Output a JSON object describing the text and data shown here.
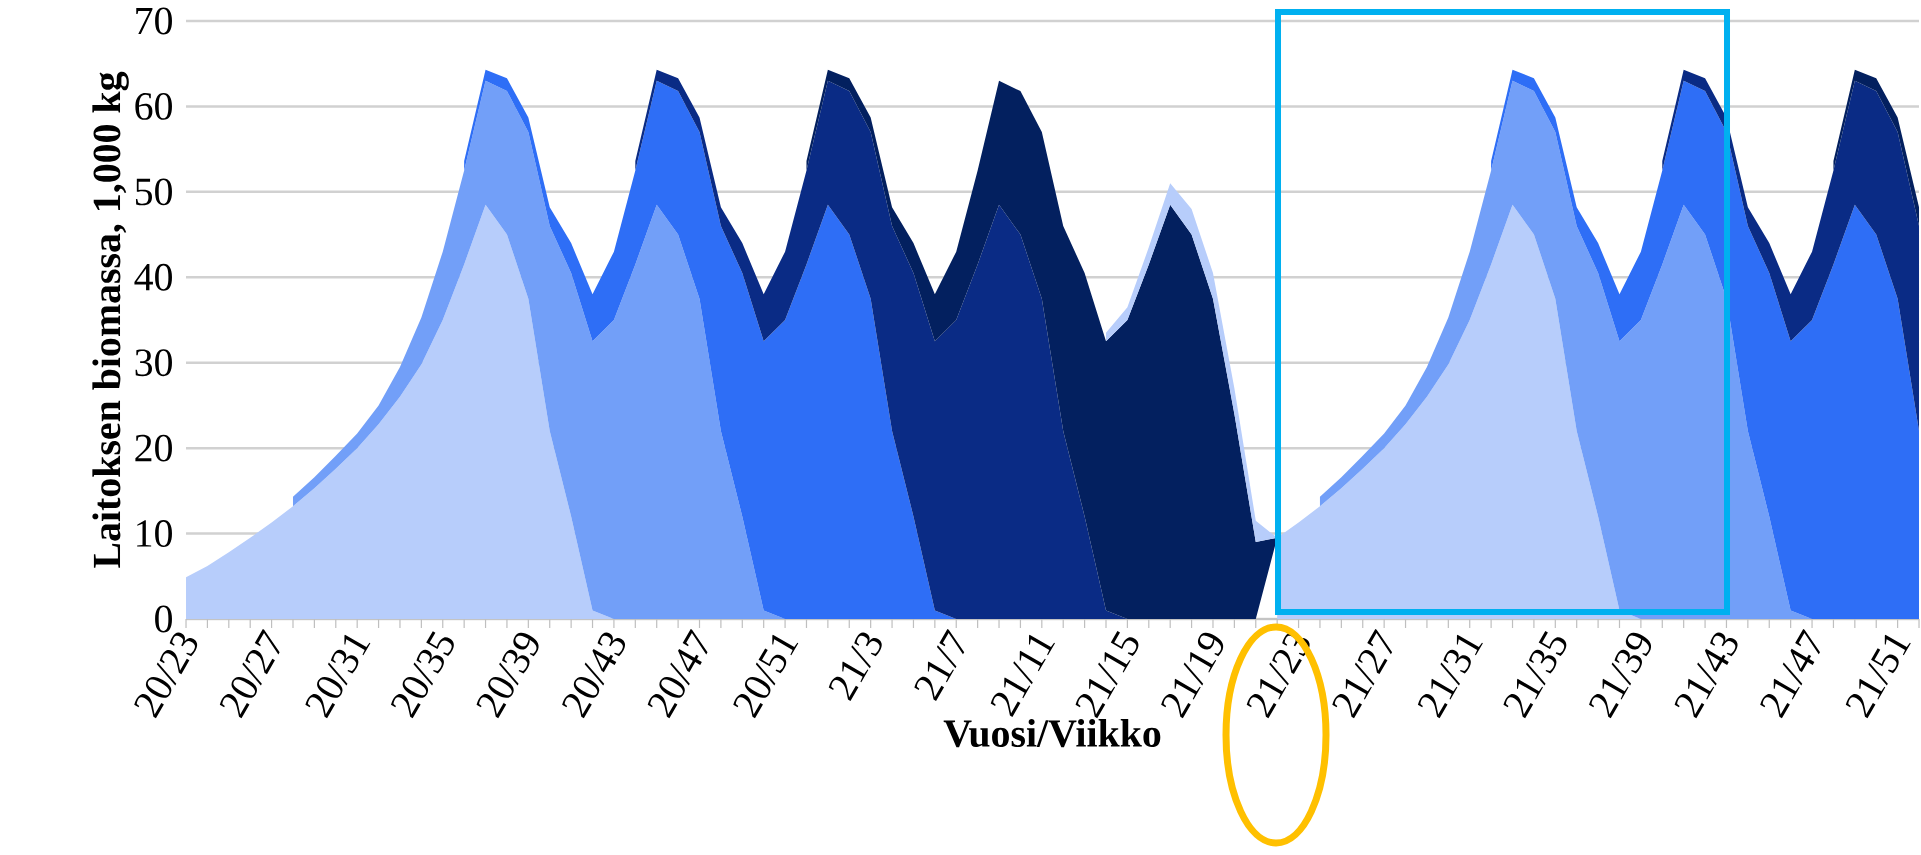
{
  "chart_data": {
    "type": "area",
    "stacked": true,
    "xlabel": "Vuosi/Viikko",
    "ylabel": "Laitoksen biomassa, 1,000 kg",
    "categories": [
      "20/23",
      null,
      null,
      null,
      "20/27",
      null,
      null,
      null,
      "20/31",
      null,
      null,
      null,
      "20/35",
      null,
      null,
      null,
      "20/39",
      null,
      null,
      null,
      "20/43",
      null,
      null,
      null,
      "20/47",
      null,
      null,
      null,
      "20/51",
      null,
      null,
      null,
      "21/3",
      null,
      null,
      null,
      "21/7",
      null,
      null,
      null,
      "21/11",
      null,
      null,
      null,
      "21/15",
      null,
      null,
      null,
      "21/19",
      null,
      null,
      null,
      "21/23",
      null,
      null,
      null,
      "21/27",
      null,
      null,
      null,
      "21/31",
      null,
      null,
      null,
      "21/35",
      null,
      null,
      null,
      "21/39",
      null,
      null,
      null,
      "21/43",
      null,
      null,
      null,
      "21/47",
      null,
      null,
      null,
      "21/51",
      null
    ],
    "series": [
      {
        "color": "#b7cdfb",
        "values": [
          4.9,
          6.2,
          7.8,
          9.5,
          11.3,
          13.2,
          15.3,
          17.6,
          20,
          22.8,
          26,
          29.8,
          35,
          41.5,
          48.5,
          45,
          37.5,
          22,
          12,
          1,
          0,
          null,
          null,
          null,
          null,
          null,
          null,
          null,
          null,
          null,
          null,
          null,
          null,
          null,
          null,
          null,
          null,
          null,
          null,
          null,
          null,
          null,
          null,
          null,
          null,
          null,
          null,
          null,
          null,
          null,
          null,
          9.5,
          11.3,
          13.2,
          15.3,
          17.6,
          20,
          22.8,
          26,
          29.8,
          35,
          41.5,
          48.5,
          45,
          37.5,
          22,
          12,
          1,
          0,
          null,
          null,
          null,
          null,
          null,
          null,
          null,
          null,
          null,
          null,
          null,
          null,
          null
        ]
      },
      {
        "color": "#729ff8",
        "values": [
          null,
          null,
          null,
          null,
          null,
          1.1,
          1.3,
          1.5,
          1.7,
          2.2,
          3.5,
          5.5,
          8,
          11,
          14.5,
          16.8,
          19.5,
          24,
          28.5,
          31.5,
          35,
          41.5,
          48.5,
          45,
          37.5,
          22,
          12,
          1,
          0,
          null,
          null,
          null,
          null,
          null,
          null,
          null,
          null,
          null,
          null,
          null,
          null,
          null,
          null,
          null,
          null,
          null,
          null,
          null,
          null,
          null,
          null,
          null,
          null,
          1.1,
          1.3,
          1.5,
          1.7,
          2.2,
          3.5,
          5.5,
          8,
          11,
          14.5,
          16.8,
          19.5,
          24,
          28.5,
          31.5,
          35,
          41.5,
          48.5,
          45,
          37.5,
          22,
          12,
          1,
          0,
          null,
          null,
          null,
          null,
          null
        ]
      },
      {
        "color": "#2e6ef6",
        "values": [
          null,
          null,
          null,
          null,
          null,
          null,
          null,
          null,
          null,
          null,
          null,
          null,
          null,
          1.1,
          1.3,
          1.5,
          1.7,
          2.2,
          3.5,
          5.5,
          8,
          11,
          14.5,
          16.8,
          19.5,
          24,
          28.5,
          31.5,
          35,
          41.5,
          48.5,
          45,
          37.5,
          22,
          12,
          1,
          0,
          null,
          null,
          null,
          null,
          null,
          null,
          null,
          null,
          null,
          null,
          null,
          null,
          null,
          null,
          null,
          null,
          null,
          null,
          null,
          null,
          null,
          null,
          null,
          null,
          1.1,
          1.3,
          1.5,
          1.7,
          2.2,
          3.5,
          5.5,
          8,
          11,
          14.5,
          16.8,
          19.5,
          24,
          28.5,
          31.5,
          35,
          41.5,
          48.5,
          45,
          37.5,
          22
        ]
      },
      {
        "color": "#0a2b85",
        "values": [
          null,
          null,
          null,
          null,
          null,
          null,
          null,
          null,
          null,
          null,
          null,
          null,
          null,
          null,
          null,
          null,
          null,
          null,
          null,
          null,
          null,
          1.1,
          1.3,
          1.5,
          1.7,
          2.2,
          3.5,
          5.5,
          8,
          11,
          14.5,
          16.8,
          19.5,
          24,
          28.5,
          31.5,
          35,
          41.5,
          48.5,
          45,
          37.5,
          22,
          12,
          1,
          0,
          null,
          null,
          null,
          null,
          null,
          null,
          null,
          null,
          null,
          null,
          null,
          null,
          null,
          null,
          null,
          null,
          null,
          null,
          null,
          null,
          null,
          null,
          null,
          null,
          1.1,
          1.3,
          1.5,
          1.7,
          2.2,
          3.5,
          5.5,
          8,
          11,
          14.5,
          16.8,
          19.5,
          24
        ]
      },
      {
        "color": "#03205f",
        "values": [
          null,
          null,
          null,
          null,
          null,
          null,
          null,
          null,
          null,
          null,
          null,
          null,
          null,
          null,
          null,
          null,
          null,
          null,
          null,
          null,
          null,
          null,
          null,
          null,
          null,
          null,
          null,
          null,
          null,
          1.1,
          1.3,
          1.5,
          1.7,
          2.2,
          3.5,
          5.5,
          8,
          11,
          14.5,
          16.8,
          19.5,
          24,
          28.5,
          31.5,
          35,
          41.5,
          48.5,
          45,
          37.5,
          24,
          9,
          0,
          null,
          null,
          null,
          null,
          null,
          null,
          null,
          null,
          null,
          null,
          null,
          null,
          null,
          null,
          null,
          null,
          null,
          null,
          null,
          null,
          null,
          null,
          null,
          null,
          null,
          1.1,
          1.3,
          1.5,
          1.7,
          2.2
        ]
      },
      {
        "color": "#b7cdfb",
        "values": [
          null,
          null,
          null,
          null,
          null,
          null,
          null,
          null,
          null,
          null,
          null,
          null,
          null,
          null,
          null,
          null,
          null,
          null,
          null,
          null,
          null,
          null,
          null,
          null,
          null,
          null,
          null,
          null,
          null,
          null,
          null,
          null,
          null,
          null,
          null,
          null,
          null,
          null,
          null,
          null,
          null,
          null,
          null,
          1,
          1.5,
          2,
          2.5,
          3,
          3,
          3,
          2.5,
          0,
          null,
          null,
          null,
          null,
          null,
          null,
          null,
          null,
          null,
          null,
          null,
          null,
          null,
          null,
          null,
          null,
          null,
          null,
          null,
          null,
          null,
          null,
          null,
          null,
          null,
          null,
          null,
          null,
          null,
          null
        ]
      }
    ],
    "ylim": [
      0,
      70
    ],
    "yticks": [
      0,
      10,
      20,
      30,
      40,
      50,
      60,
      70
    ],
    "grid": "y"
  }
}
